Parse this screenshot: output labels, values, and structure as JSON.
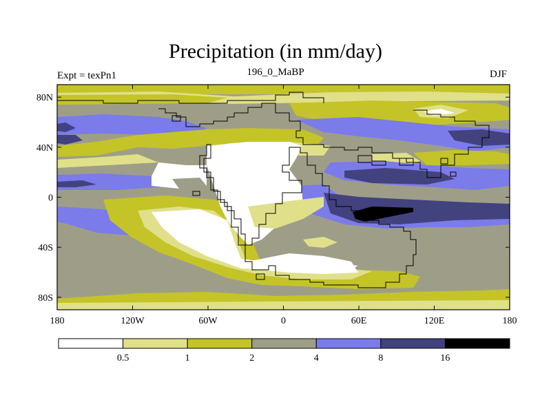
{
  "title": "Precipitation (in mm/day)",
  "left_label": "Expt = texPn1",
  "center_label": "196_0_MaBP",
  "right_label": "DJF",
  "lat_ticks": [
    {
      "label": "80N",
      "lat": 80
    },
    {
      "label": "40N",
      "lat": 40
    },
    {
      "label": "0",
      "lat": 0
    },
    {
      "label": "40S",
      "lat": -40
    },
    {
      "label": "80S",
      "lat": -80
    }
  ],
  "lon_ticks": [
    {
      "label": "180",
      "lon": -180
    },
    {
      "label": "120W",
      "lon": -120
    },
    {
      "label": "60W",
      "lon": -60
    },
    {
      "label": "0",
      "lon": 0
    },
    {
      "label": "60E",
      "lon": 60
    },
    {
      "label": "120E",
      "lon": 120
    },
    {
      "label": "180",
      "lon": 180
    }
  ],
  "colorbar": {
    "colors": [
      "#ffffff",
      "#e0e08a",
      "#c4c428",
      "#9e9e88",
      "#7b7bea",
      "#42427f",
      "#000000"
    ],
    "levels": [
      "0.5",
      "1",
      "2",
      "4",
      "8",
      "16"
    ]
  },
  "colors": {
    "coastline": "#000000"
  }
}
